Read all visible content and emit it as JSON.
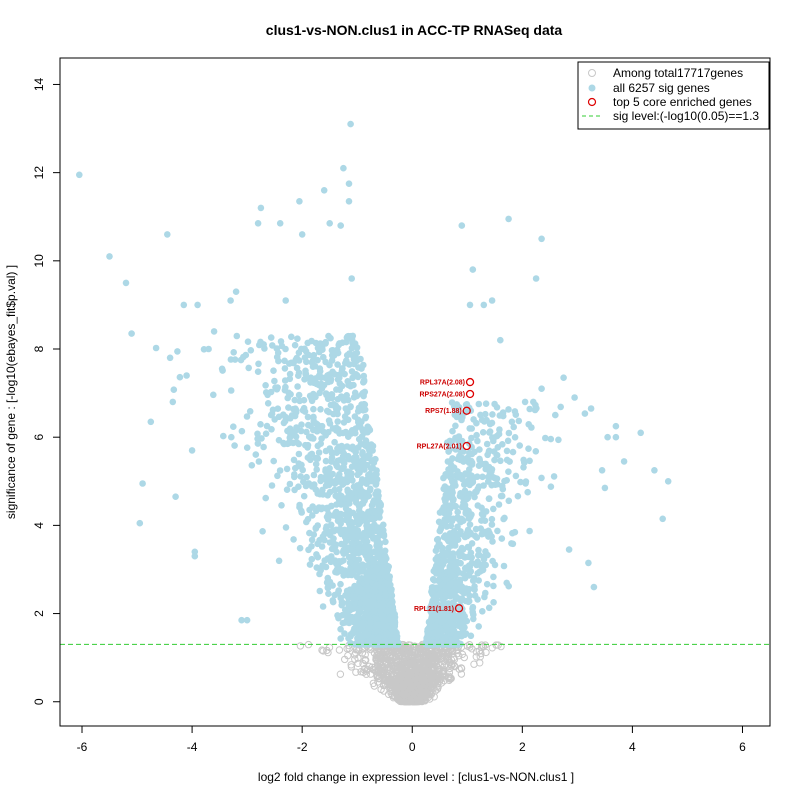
{
  "chart_data": {
    "type": "scatter",
    "title": "clus1-vs-NON.clus1 in ACC-TP RNASeq data",
    "xlabel": "log2 fold change in expression level : [clus1-vs-NON.clus1 ]",
    "ylabel": "significance of gene : [-log10(ebayes_fit$p.val) ]",
    "xlim": [
      -6.4,
      6.5
    ],
    "ylim": [
      -0.55,
      14.6
    ],
    "x_ticks": [
      -6,
      -4,
      -2,
      0,
      2,
      4,
      6
    ],
    "y_ticks": [
      0,
      2,
      4,
      6,
      8,
      10,
      12,
      14
    ],
    "sig_level": 1.3,
    "colors": {
      "nonsig": "#c8c8c8",
      "sig": "#add8e6",
      "core": "#dd0000",
      "threshold": "#33cc33",
      "axis": "#000000"
    },
    "legend": {
      "position": "top-right",
      "entries": [
        {
          "label": "Among total17717genes",
          "symbol": "open-circle",
          "color": "#c8c8c8"
        },
        {
          "label": "all 6257 sig genes",
          "symbol": "filled-circle",
          "color": "#add8e6"
        },
        {
          "label": "top 5 core enriched genes",
          "symbol": "open-circle",
          "color": "#dd0000"
        },
        {
          "label": "sig level:(-log10(0.05)==1.3",
          "symbol": "dashed-line",
          "color": "#33cc33"
        }
      ]
    },
    "core_genes": [
      {
        "label": "RPL37A(2.08)",
        "x": 1.05,
        "y": 7.25
      },
      {
        "label": "RPS27A(2.08)",
        "x": 1.05,
        "y": 6.98
      },
      {
        "label": "RPS7(1.88)",
        "x": 0.99,
        "y": 6.6
      },
      {
        "label": "RPL27A(2.01)",
        "x": 0.99,
        "y": 5.8
      },
      {
        "label": "RPL21(1.81)",
        "x": 0.85,
        "y": 2.12
      }
    ],
    "outlier_sig_points": [
      [
        -6.05,
        11.95
      ],
      [
        -5.5,
        10.1
      ],
      [
        -5.2,
        9.5
      ],
      [
        -5.1,
        8.35
      ],
      [
        -4.9,
        4.95
      ],
      [
        -4.95,
        4.05
      ],
      [
        -4.75,
        6.35
      ],
      [
        -4.45,
        10.6
      ],
      [
        -4.4,
        7.8
      ],
      [
        -4.3,
        4.65
      ],
      [
        -4.15,
        9.0
      ],
      [
        -3.9,
        9.0
      ],
      [
        -3.95,
        3.4
      ],
      [
        -3.95,
        3.3
      ],
      [
        -4.35,
        6.8
      ],
      [
        -4.1,
        7.4
      ],
      [
        -4.0,
        5.7
      ],
      [
        -3.7,
        8.0
      ],
      [
        -3.6,
        8.4
      ],
      [
        -3.3,
        9.1
      ],
      [
        -3.2,
        9.3
      ],
      [
        -3.1,
        1.85
      ],
      [
        -3.0,
        1.85
      ],
      [
        -2.8,
        10.85
      ],
      [
        -2.75,
        11.2
      ],
      [
        -2.4,
        10.85
      ],
      [
        -2.3,
        9.1
      ],
      [
        -2.05,
        11.35
      ],
      [
        -2.0,
        10.6
      ],
      [
        -1.6,
        11.6
      ],
      [
        -1.5,
        10.85
      ],
      [
        -1.25,
        12.1
      ],
      [
        -1.15,
        11.75
      ],
      [
        -1.15,
        11.35
      ],
      [
        -1.12,
        13.1
      ],
      [
        -1.1,
        9.6
      ],
      [
        -1.3,
        10.8
      ],
      [
        0.9,
        10.8
      ],
      [
        1.1,
        9.8
      ],
      [
        1.05,
        9.0
      ],
      [
        1.3,
        9.0
      ],
      [
        1.45,
        9.1
      ],
      [
        1.75,
        10.95
      ],
      [
        1.6,
        8.2
      ],
      [
        2.35,
        10.5
      ],
      [
        2.25,
        9.6
      ],
      [
        2.75,
        7.35
      ],
      [
        2.35,
        7.1
      ],
      [
        2.95,
        6.9
      ],
      [
        3.25,
        6.65
      ],
      [
        3.7,
        6.25
      ],
      [
        3.7,
        6.0
      ],
      [
        3.55,
        6.0
      ],
      [
        4.15,
        6.1
      ],
      [
        4.4,
        5.25
      ],
      [
        4.65,
        5.0
      ],
      [
        4.55,
        4.15
      ],
      [
        3.85,
        5.45
      ],
      [
        3.45,
        5.25
      ],
      [
        3.5,
        4.85
      ],
      [
        3.2,
        3.15
      ],
      [
        3.3,
        2.6
      ],
      [
        2.85,
        3.45
      ],
      [
        2.6,
        6.5
      ],
      [
        2.2,
        6.8
      ],
      [
        2.05,
        6.8
      ]
    ]
  }
}
